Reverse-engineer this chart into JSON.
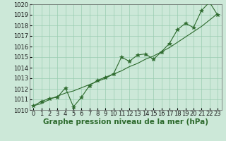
{
  "x": [
    0,
    1,
    2,
    3,
    4,
    5,
    6,
    7,
    8,
    9,
    10,
    11,
    12,
    13,
    14,
    15,
    16,
    17,
    18,
    19,
    20,
    21,
    22,
    23
  ],
  "y_main": [
    1010.4,
    1010.8,
    1011.1,
    1011.2,
    1012.1,
    1010.3,
    1011.2,
    1012.3,
    1012.8,
    1013.1,
    1013.4,
    1015.0,
    1014.6,
    1015.2,
    1015.3,
    1014.8,
    1015.5,
    1016.3,
    1017.6,
    1018.2,
    1017.8,
    1019.4,
    1020.2,
    1019.0
  ],
  "y_smooth": [
    1010.4,
    1010.6,
    1011.0,
    1011.3,
    1011.6,
    1011.8,
    1012.1,
    1012.4,
    1012.7,
    1013.0,
    1013.4,
    1013.7,
    1014.1,
    1014.4,
    1014.8,
    1015.1,
    1015.5,
    1015.9,
    1016.4,
    1016.9,
    1017.4,
    1017.9,
    1018.5,
    1019.1
  ],
  "line_color": "#2d6a2d",
  "marker_color": "#2d6a2d",
  "bg_color": "#cce8d8",
  "grid_color": "#99ccb0",
  "xlabel": "Graphe pression niveau de la mer (hPa)",
  "ylim": [
    1010,
    1020
  ],
  "xlim_min": -0.5,
  "xlim_max": 23.5,
  "yticks": [
    1010,
    1011,
    1012,
    1013,
    1014,
    1015,
    1016,
    1017,
    1018,
    1019,
    1020
  ],
  "xticks": [
    0,
    1,
    2,
    3,
    4,
    5,
    6,
    7,
    8,
    9,
    10,
    11,
    12,
    13,
    14,
    15,
    16,
    17,
    18,
    19,
    20,
    21,
    22,
    23
  ],
  "xlabel_fontsize": 7.5,
  "tick_fontsize": 6.0,
  "marker_size": 4,
  "line_width": 0.8
}
